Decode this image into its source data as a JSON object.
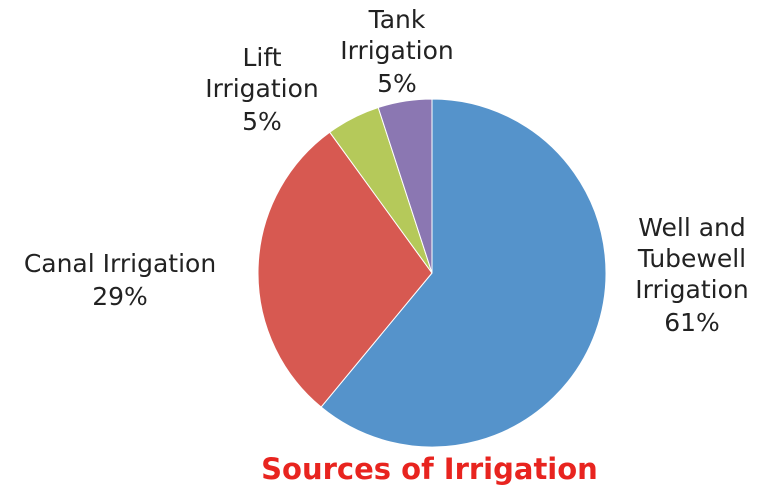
{
  "chart_data": {
    "type": "pie",
    "title": "Sources of Irrigation",
    "categories": [
      "Well and Tubewell Irrigation",
      "Canal Irrigation",
      "Lift Irrigation",
      "Tank Irrigation"
    ],
    "values": [
      61,
      29,
      5,
      5
    ],
    "value_labels": [
      "61%",
      "29%",
      "5%",
      "5%"
    ],
    "colors": [
      "#5593cb",
      "#d75951",
      "#b5c95a",
      "#8b77b2"
    ]
  }
}
